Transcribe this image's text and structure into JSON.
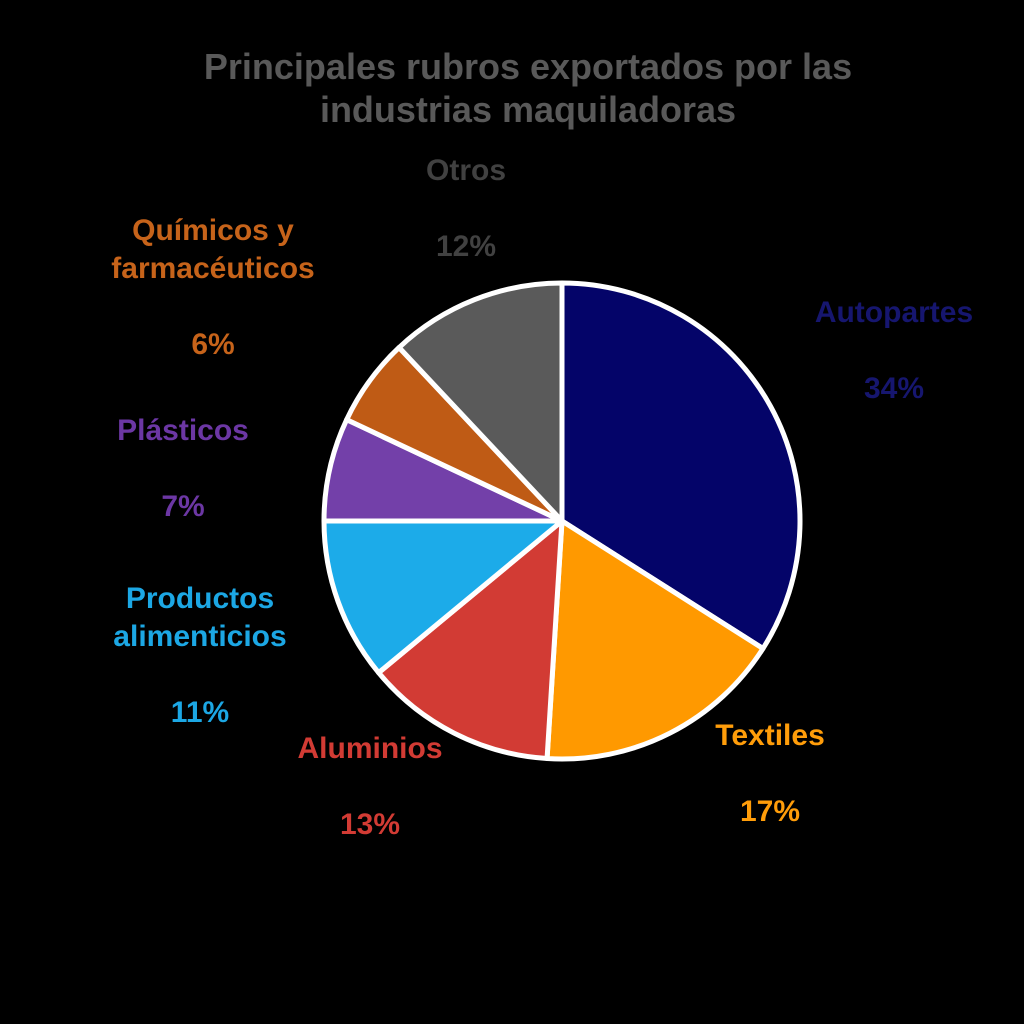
{
  "title": "Principales rubros exportados por las\nindustrias maquiladoras",
  "title_color": "#595959",
  "background_color": "#000000",
  "chart_data": {
    "type": "pie",
    "title": "Principales rubros exportados por las industrias maquiladoras",
    "start_angle_deg": 0,
    "direction": "clockwise",
    "stroke_color": "#ffffff",
    "stroke_width": 5,
    "legend_position": "labels-around-pie",
    "slices": [
      {
        "id": "autopartes",
        "name": "Autopartes",
        "value": 34,
        "pct_label": "34%",
        "color": "#040469",
        "label_color": "#16166F"
      },
      {
        "id": "textiles",
        "name": "Textiles",
        "value": 17,
        "pct_label": "17%",
        "color": "#FF9900",
        "label_color": "#FF9D0A"
      },
      {
        "id": "aluminios",
        "name": "Aluminios",
        "value": 13,
        "pct_label": "13%",
        "color": "#D23B34",
        "label_color": "#D23B34"
      },
      {
        "id": "productos-alimenticios",
        "name": "Productos\nalimenticios",
        "value": 11,
        "pct_label": "11%",
        "color": "#1CABE9",
        "label_color": "#1CA7E4"
      },
      {
        "id": "plasticos",
        "name": "Plásticos",
        "value": 7,
        "pct_label": "7%",
        "color": "#7340A9",
        "label_color": "#6C37A4"
      },
      {
        "id": "quimicos-farmaceuticos",
        "name": "Químicos y\nfarmacéuticos",
        "value": 6,
        "pct_label": "6%",
        "color": "#BF5B15",
        "label_color": "#C6631A"
      },
      {
        "id": "otros",
        "name": "Otros",
        "value": 12,
        "pct_label": "12%",
        "color": "#5A5A5A",
        "label_color": "#414141"
      }
    ]
  }
}
